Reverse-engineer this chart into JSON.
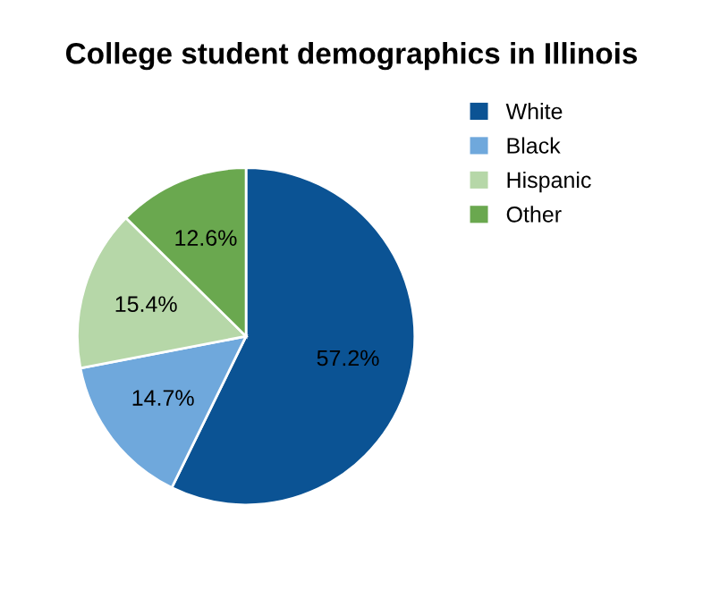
{
  "chart_data": {
    "type": "pie",
    "title": "College student demographics in Illinois",
    "categories": [
      "White",
      "Black",
      "Hispanic",
      "Other"
    ],
    "values": [
      57.2,
      14.7,
      15.4,
      12.6
    ],
    "value_labels": [
      "57.2%",
      "14.7%",
      "15.4%",
      "12.6%"
    ],
    "colors": [
      "#0b5394",
      "#6fa8dc",
      "#b6d7a8",
      "#6aa84f"
    ],
    "legend": "top right"
  }
}
